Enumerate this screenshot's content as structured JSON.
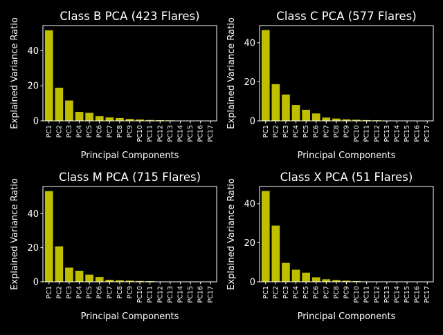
{
  "colors": {
    "background": "#000000",
    "bar": "#bfbf00",
    "foreground": "#ffffff"
  },
  "chart_data": [
    {
      "type": "bar",
      "title": "Class B PCA (423 Flares)",
      "xlabel": "Principal Components",
      "ylabel": "Explained Variance Ratio",
      "categories": [
        "PC1",
        "PC2",
        "PC3",
        "PC4",
        "PC5",
        "PC6",
        "PC7",
        "PC8",
        "PC9",
        "PC10",
        "PC11",
        "PC12",
        "PC13",
        "PC14",
        "PC15",
        "PC16",
        "PC17"
      ],
      "values": [
        51.6,
        18.9,
        11.6,
        5.1,
        4.6,
        2.7,
        2.0,
        1.6,
        1.1,
        0.8,
        0.5,
        0.4,
        0.3,
        0.2,
        0.2,
        0.1,
        0.1
      ],
      "yticks": [
        0,
        20,
        40
      ],
      "ylim": [
        0,
        54.3
      ],
      "grid": false
    },
    {
      "type": "bar",
      "title": "Class C PCA (577 Flares)",
      "xlabel": "Principal Components",
      "ylabel": "Explained Variance Ratio",
      "categories": [
        "PC1",
        "PC2",
        "PC3",
        "PC4",
        "PC5",
        "PC6",
        "PC7",
        "PC8",
        "PC9",
        "PC10",
        "PC11",
        "PC12",
        "PC13",
        "PC14",
        "PC15",
        "PC16",
        "PC17"
      ],
      "values": [
        46.5,
        18.8,
        13.5,
        8.1,
        5.7,
        3.8,
        1.7,
        1.2,
        0.8,
        0.6,
        0.4,
        0.3,
        0.2,
        0.1,
        0.1,
        0.1,
        0.1
      ],
      "yticks": [
        0,
        20,
        40
      ],
      "ylim": [
        0,
        48.8
      ],
      "grid": false
    },
    {
      "type": "bar",
      "title": "Class M PCA (715 Flares)",
      "xlabel": "Principal Components",
      "ylabel": "Explained Variance Ratio",
      "categories": [
        "PC1",
        "PC2",
        "PC3",
        "PC4",
        "PC5",
        "PC6",
        "PC7",
        "PC8",
        "PC9",
        "PC10",
        "PC11",
        "PC12",
        "PC13",
        "PC14",
        "PC15",
        "PC16",
        "PC17"
      ],
      "values": [
        53.2,
        20.8,
        8.3,
        6.5,
        4.2,
        2.8,
        1.2,
        0.9,
        0.7,
        0.5,
        0.4,
        0.2,
        0.1,
        0.1,
        0.1,
        0.1,
        0.0
      ],
      "yticks": [
        0,
        20,
        40
      ],
      "ylim": [
        0,
        55.9
      ],
      "grid": false
    },
    {
      "type": "bar",
      "title": "Class X PCA (51 Flares)",
      "xlabel": "Principal Components",
      "ylabel": "Explained Variance Ratio",
      "categories": [
        "PC1",
        "PC2",
        "PC3",
        "PC4",
        "PC5",
        "PC6",
        "PC7",
        "PC8",
        "PC9",
        "PC10",
        "PC11",
        "PC12",
        "PC13",
        "PC14",
        "PC15",
        "PC16",
        "PC17"
      ],
      "values": [
        46.5,
        28.8,
        9.7,
        6.2,
        4.7,
        2.3,
        1.3,
        0.9,
        0.6,
        0.4,
        0.2,
        0.1,
        0.1,
        0.1,
        0.0,
        0.0,
        0.0
      ],
      "yticks": [
        0,
        20,
        40
      ],
      "ylim": [
        0,
        48.8
      ],
      "grid": false
    }
  ]
}
